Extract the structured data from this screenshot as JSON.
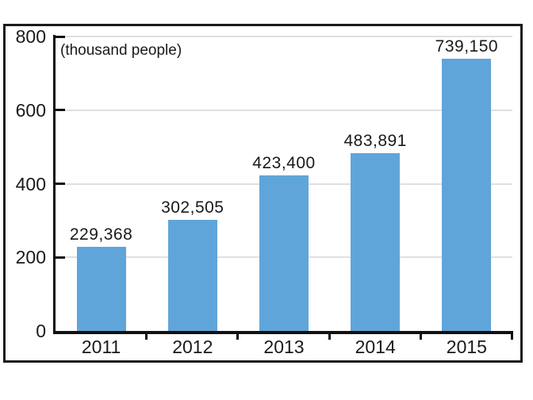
{
  "chart_data": {
    "type": "bar",
    "title": "",
    "unit_label": "(thousand people)",
    "categories": [
      "2011",
      "2012",
      "2013",
      "2014",
      "2015"
    ],
    "values": [
      229368,
      302505,
      423400,
      483891,
      739150
    ],
    "values_in_thousands": [
      229.368,
      302.505,
      423.4,
      483.891,
      739.15
    ],
    "display_values": [
      "229,368",
      "302,505",
      "423,400",
      "483,891",
      "739,150"
    ],
    "xlabel": "",
    "ylabel": "(thousand people)",
    "ylim": [
      0,
      800
    ],
    "y_tick_labels": [
      "800",
      "600",
      "400",
      "200",
      "0"
    ],
    "y_tick_values": [
      800,
      600,
      400,
      200,
      0
    ],
    "grid": true,
    "legend": "none",
    "bar_color": "#5fa5da",
    "colors": {
      "bar": "#5fa5da",
      "axis": "#111111",
      "gridline": "#e0e0e0",
      "frame": "#1a1a1a",
      "text": "#1a1a1a",
      "background": "#ffffff"
    }
  }
}
